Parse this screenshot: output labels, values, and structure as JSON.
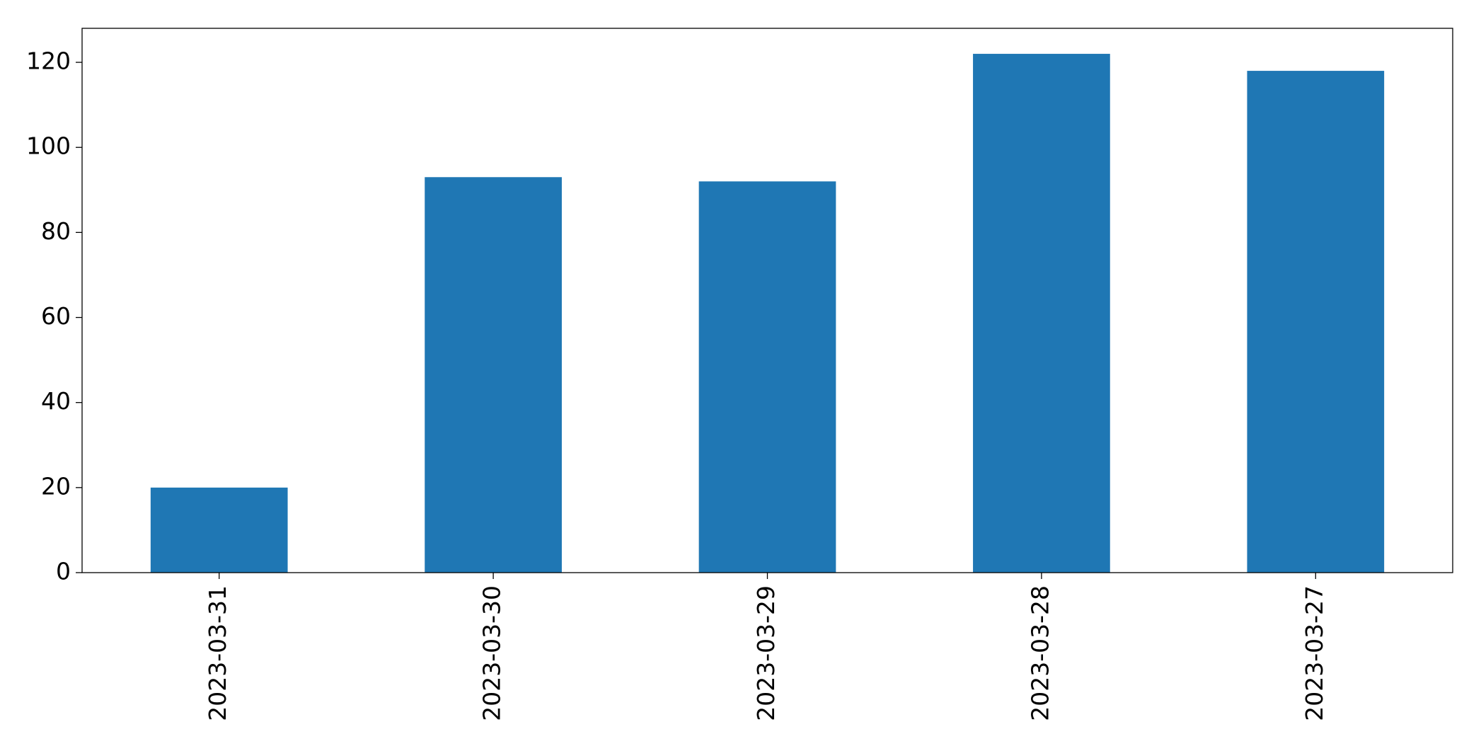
{
  "chart_data": {
    "type": "bar",
    "categories": [
      "2023-03-31",
      "2023-03-30",
      "2023-03-29",
      "2023-03-28",
      "2023-03-27"
    ],
    "values": [
      20,
      93,
      92,
      122,
      118
    ],
    "color": "#1f77b4",
    "ylim": [
      0,
      128
    ],
    "yticks": [
      0,
      20,
      40,
      60,
      80,
      100,
      120
    ],
    "grid": false
  }
}
